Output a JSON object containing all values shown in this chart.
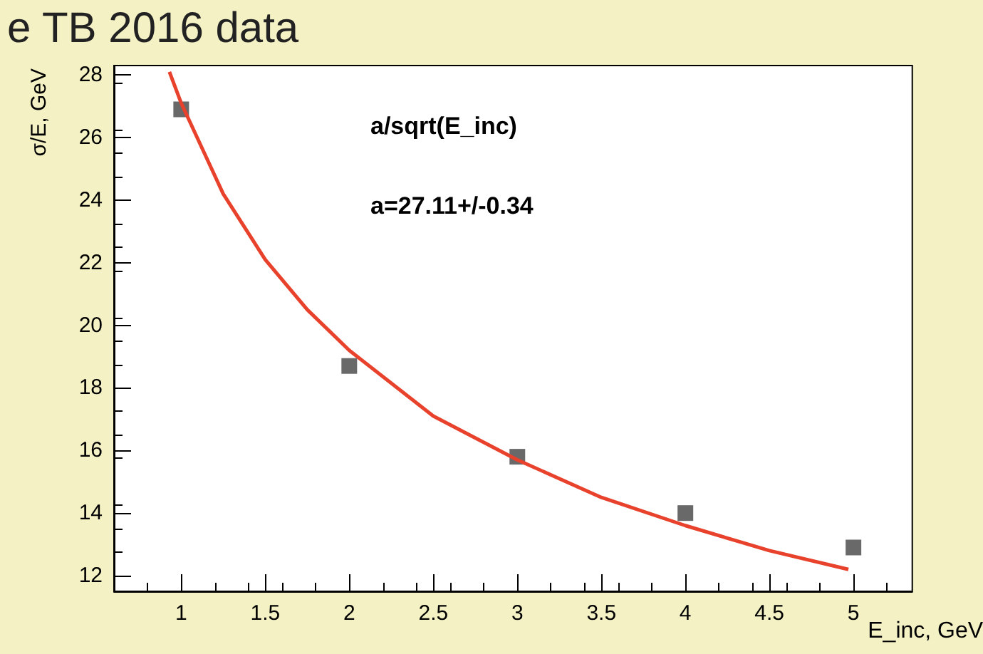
{
  "chart_data": {
    "type": "scatter",
    "title": "e TB 2016 data",
    "xlabel": "E_inc, GeV",
    "ylabel": "σ/E, GeV",
    "annotations": [
      "a/sqrt(E_inc)",
      "a=27.11+/-0.34"
    ],
    "series": [
      {
        "type": "scatter",
        "color": "#444444",
        "marker": "square",
        "x": [
          1,
          2,
          3,
          4,
          5
        ],
        "values": [
          26.9,
          18.7,
          15.8,
          14.0,
          12.9
        ]
      },
      {
        "type": "line",
        "color": "#e8412c",
        "marker": "none",
        "line_style": "solid",
        "x": [
          0.93,
          1,
          1.25,
          1.5,
          1.75,
          2,
          2.5,
          3,
          3.5,
          4,
          4.5,
          4.97
        ],
        "values": [
          28.1,
          27.1,
          24.2,
          22.1,
          20.5,
          19.2,
          17.1,
          15.7,
          14.5,
          13.6,
          12.8,
          12.2
        ]
      }
    ],
    "xlim": [
      0.6,
      5.35
    ],
    "xticks": [
      1,
      1.5,
      2,
      2.5,
      3,
      3.5,
      4,
      4.5,
      5
    ],
    "ylim": [
      11.5,
      28.3
    ],
    "yticks": [
      12,
      14,
      16,
      18,
      20,
      22,
      24,
      26,
      28
    ],
    "grid": false
  }
}
